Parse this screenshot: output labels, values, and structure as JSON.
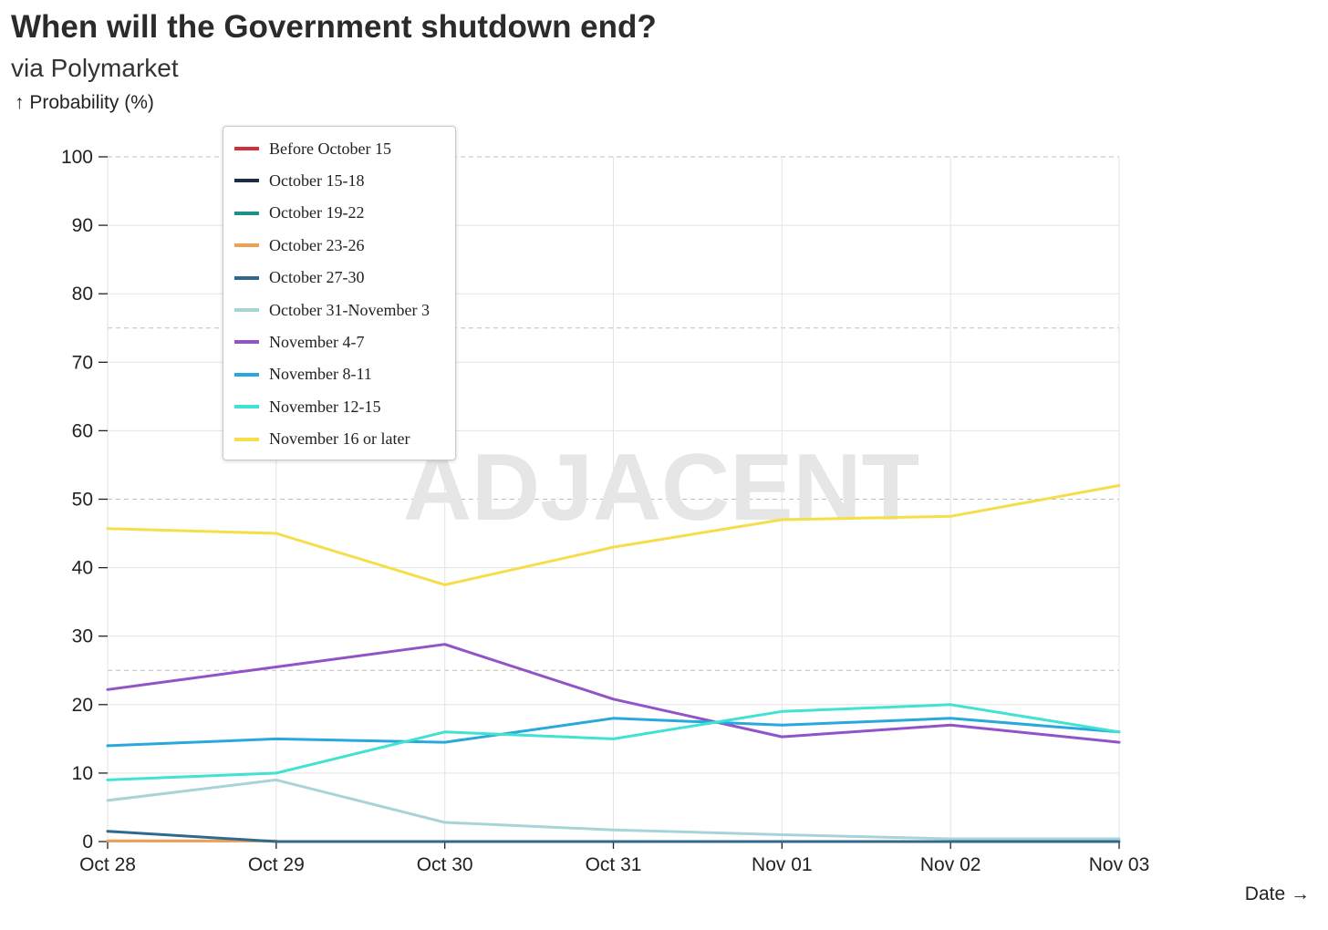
{
  "header": {
    "title": "When will the Government shutdown end?",
    "subtitle": "via Polymarket",
    "y_axis_label": "↑ Probability (%)",
    "x_axis_label": "Date →"
  },
  "watermark": "ADJACENT",
  "chart_data": {
    "type": "line",
    "title": "When will the Government shutdown end?",
    "subtitle": "via Polymarket",
    "xlabel": "Date →",
    "ylabel": "↑ Probability (%)",
    "ylim": [
      0,
      100
    ],
    "y_ticks": [
      0,
      10,
      20,
      30,
      40,
      50,
      60,
      70,
      80,
      90,
      100
    ],
    "dashed_reference_lines": [
      25,
      50,
      75,
      100
    ],
    "grid": true,
    "legend_position": "top-left",
    "categories": [
      "Oct 28",
      "Oct 29",
      "Oct 30",
      "Oct 31",
      "Nov 01",
      "Nov 02",
      "Nov 03"
    ],
    "series": [
      {
        "name": "Before October 15",
        "color": "#d62f3c",
        "values": [
          null,
          null,
          null,
          null,
          null,
          null,
          null
        ]
      },
      {
        "name": "October 15-18",
        "color": "#1d2b45",
        "values": [
          null,
          null,
          null,
          null,
          null,
          null,
          null
        ]
      },
      {
        "name": "October 19-22",
        "color": "#1e8f8a",
        "values": [
          null,
          null,
          null,
          null,
          null,
          null,
          null
        ]
      },
      {
        "name": "October 23-26",
        "color": "#f0a052",
        "values": [
          0.1,
          0.1,
          null,
          null,
          null,
          null,
          null
        ]
      },
      {
        "name": "October 27-30",
        "color": "#2f6a8e",
        "values": [
          1.5,
          0,
          0,
          0,
          0,
          0,
          0
        ]
      },
      {
        "name": "October 31-November 3",
        "color": "#a8d4d8",
        "values": [
          6,
          9,
          2.8,
          1.7,
          1,
          0.4,
          0.4
        ]
      },
      {
        "name": "November 4-7",
        "color": "#9154c8",
        "values": [
          22.2,
          25.5,
          28.8,
          20.8,
          15.3,
          17,
          14.5
        ]
      },
      {
        "name": "November 8-11",
        "color": "#28a8dc",
        "values": [
          14,
          15,
          14.5,
          18,
          17,
          18,
          16
        ]
      },
      {
        "name": "November 12-15",
        "color": "#40e2d2",
        "values": [
          9,
          10,
          16,
          15,
          19,
          20,
          16
        ]
      },
      {
        "name": "November 16 or later",
        "color": "#f6dd4a",
        "values": [
          45.7,
          45,
          37.5,
          43,
          47,
          47.5,
          52
        ]
      }
    ]
  }
}
